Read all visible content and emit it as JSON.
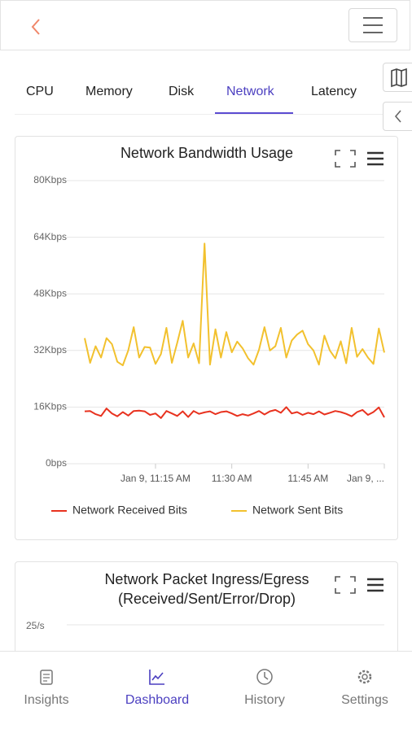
{
  "tabs": [
    "CPU",
    "Memory",
    "Disk",
    "Network",
    "Latency"
  ],
  "chart_data": [
    {
      "type": "line",
      "title": "Network Bandwidth Usage",
      "ylim": [
        0,
        80
      ],
      "yticks": [
        {
          "value": 0,
          "label": "0bps"
        },
        {
          "value": 16,
          "label": "16Kbps"
        },
        {
          "value": 32,
          "label": "32Kbps"
        },
        {
          "value": 48,
          "label": "48Kbps"
        },
        {
          "value": 64,
          "label": "64Kbps"
        },
        {
          "value": 80,
          "label": "80Kbps"
        }
      ],
      "xlim": [
        0,
        55
      ],
      "xticks": [
        {
          "value": 13,
          "label": "Jan 9, 11:15 AM"
        },
        {
          "value": 27,
          "label": "11:30 AM"
        },
        {
          "value": 41,
          "label": "11:45 AM"
        },
        {
          "value": 55,
          "label": "Jan 9, ..."
        }
      ],
      "grid": true,
      "series": [
        {
          "name": "Network Received Bits",
          "color": "#e8321f",
          "values": [
            14.8,
            14.9,
            14.0,
            13.5,
            15.6,
            14.2,
            13.4,
            14.6,
            13.6,
            14.9,
            15.0,
            14.8,
            13.8,
            14.2,
            12.9,
            14.9,
            14.2,
            13.5,
            14.8,
            13.2,
            14.9,
            14.1,
            14.5,
            14.8,
            14.0,
            14.6,
            14.8,
            14.2,
            13.5,
            14.0,
            13.6,
            14.2,
            14.9,
            13.9,
            14.8,
            15.2,
            14.4,
            16.0,
            14.2,
            14.6,
            13.8,
            14.4,
            14.0,
            14.8,
            13.9,
            14.4,
            14.9,
            14.6,
            14.1,
            13.4,
            14.6,
            15.2,
            13.8,
            14.6,
            15.9,
            13.1
          ]
        },
        {
          "name": "Network Sent Bits",
          "color": "#f2c12e",
          "values": [
            35.5,
            28.5,
            33.2,
            30.0,
            35.5,
            33.8,
            28.8,
            27.8,
            32.0,
            38.6,
            30.0,
            33.0,
            32.8,
            28.2,
            31.0,
            38.4,
            28.5,
            34.2,
            40.4,
            30.0,
            34.0,
            28.4,
            62.2,
            28.0,
            38.0,
            30.0,
            37.2,
            31.5,
            34.5,
            32.6,
            29.8,
            28.0,
            32.2,
            38.6,
            32.0,
            33.2,
            38.4,
            30.0,
            34.8,
            36.5,
            37.6,
            33.8,
            32.0,
            28.0,
            36.2,
            32.0,
            29.8,
            34.6,
            28.4,
            38.4,
            30.2,
            32.4,
            30.0,
            28.2,
            38.2,
            31.4
          ]
        }
      ]
    },
    {
      "type": "line",
      "title": "Network Packet Ingress/Egress (Received/Sent/Error/Drop)",
      "yticks": [
        {
          "value": 25,
          "label": "25/s"
        }
      ]
    }
  ],
  "nav": [
    "Insights",
    "Dashboard",
    "History",
    "Settings"
  ]
}
